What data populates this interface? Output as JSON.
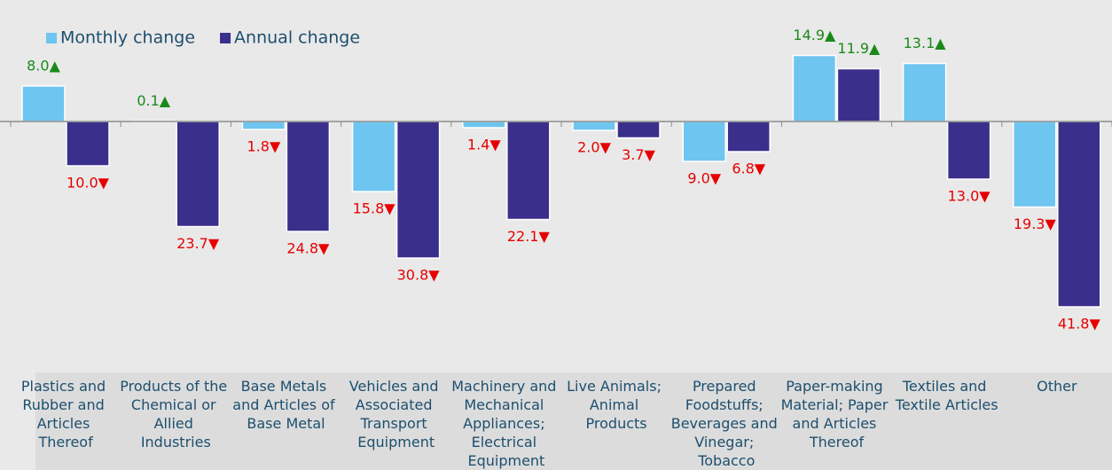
{
  "chart_data": {
    "type": "bar",
    "categories": [
      "Plastics and Rubber and Articles Thereof",
      "Products of the Chemical or Allied Industries",
      "Base Metals and Articles of Base Metal",
      "Vehicles and Associated Transport Equipment",
      "Machinery and Mechanical Appliances; Electrical Equipment",
      "Live Animals; Animal Products",
      "Prepared Foodstuffs; Beverages and Vinegar; Tobacco",
      "Paper-making Material; Paper and Articles Thereof",
      "Textiles and Textile Articles",
      "Other"
    ],
    "series": [
      {
        "name": "Monthly change",
        "color": "#6ec5f0",
        "values": [
          8.0,
          0.1,
          -1.8,
          -15.8,
          -1.4,
          -2.0,
          -9.0,
          14.9,
          13.1,
          -19.3
        ],
        "value_labels": [
          "8.0▲",
          "0.1▲",
          "1.8▼",
          "15.8▼",
          "1.4▼",
          "2.0▼",
          "9.0▼",
          "14.9▲",
          "13.1▲",
          "19.3▼"
        ]
      },
      {
        "name": "Annual change",
        "color": "#3b2f8c",
        "values": [
          -10.0,
          -23.7,
          -24.8,
          -30.8,
          -22.1,
          -3.7,
          -6.8,
          11.9,
          -13.0,
          -41.8
        ],
        "value_labels": [
          "10.0▼",
          "23.7▼",
          "24.8▼",
          "30.8▼",
          "22.1▼",
          "3.7▼",
          "6.8▼",
          "11.9▲",
          "13.0▼",
          "41.8▼"
        ]
      }
    ],
    "ylim": [
      -54.6,
      27.4
    ],
    "legend": "top-left"
  }
}
